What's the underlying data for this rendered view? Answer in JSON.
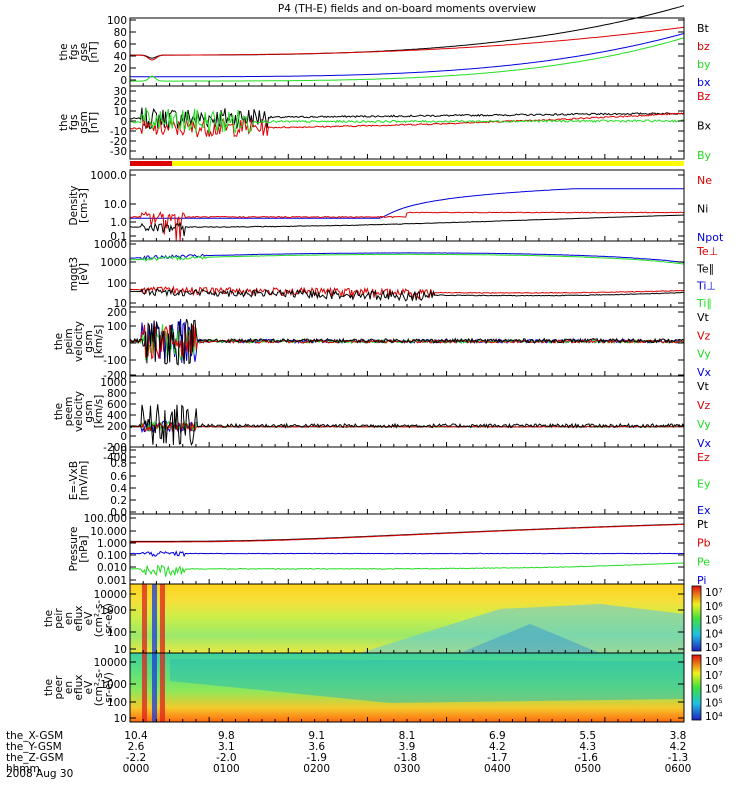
{
  "title": "P4 (TH-E) fields and on-board moments overview",
  "date_label": "2008 Aug 30",
  "colors": {
    "black": "#000000",
    "red": "#dd0000",
    "green": "#22dd22",
    "blue": "#0000dd",
    "yellow": "#ffff00"
  },
  "chart_data": [
    {
      "id": "fgs-gse",
      "type": "line",
      "ylabel": [
        "the",
        "fgs",
        "gse",
        "[nT]"
      ],
      "yticks": [
        "100",
        "80",
        "60",
        "40",
        "20",
        "0"
      ],
      "ylim": [
        -5,
        105
      ],
      "legend": [
        {
          "name": "Bt",
          "color": "#000000"
        },
        {
          "name": "bz",
          "color": "#dd0000"
        },
        {
          "name": "by",
          "color": "#22dd22"
        },
        {
          "name": "bx",
          "color": "#0000dd"
        }
      ]
    },
    {
      "id": "fgs-gsm",
      "type": "line",
      "ylabel": [
        "the",
        "fgs",
        "gsm",
        "[nT]"
      ],
      "yticks": [
        "30",
        "20",
        "10",
        "0",
        "-10",
        "-20",
        "-30"
      ],
      "ylim": [
        -35,
        32
      ],
      "legend": [
        {
          "name": "Bz",
          "color": "#dd0000"
        },
        {
          "name": "Bx",
          "color": "#000000"
        },
        {
          "name": "By",
          "color": "#22dd22"
        }
      ]
    },
    {
      "id": "density",
      "type": "line",
      "ylabel": [
        "Density",
        "[cm-3]"
      ],
      "yticks": [
        "1000.0",
        "10.0",
        "1.0",
        "0.1"
      ],
      "log": true,
      "ylim": [
        0.05,
        2000
      ],
      "legend": [
        {
          "name": "Ne",
          "color": "#dd0000"
        },
        {
          "name": "Ni",
          "color": "#000000"
        },
        {
          "name": "Npot",
          "color": "#0000dd"
        }
      ]
    },
    {
      "id": "temperature",
      "type": "line",
      "ylabel": [
        "mgqt3",
        "[eV]"
      ],
      "yticks": [
        "10000",
        "1000",
        "100",
        "10"
      ],
      "log": true,
      "ylim": [
        8,
        12000
      ],
      "legend": [
        {
          "name": "Te⊥",
          "color": "#dd0000"
        },
        {
          "name": "Te∥",
          "color": "#000000"
        },
        {
          "name": "Ti⊥",
          "color": "#0000dd"
        },
        {
          "name": "Ti∥",
          "color": "#22dd22"
        }
      ]
    },
    {
      "id": "peim-velocity",
      "type": "line",
      "ylabel": [
        "the",
        "peim",
        "velocity",
        "gsm",
        "[km/s]"
      ],
      "yticks": [
        "200",
        "100",
        "0",
        "-100",
        "-200"
      ],
      "ylim": [
        -200,
        200
      ],
      "legend": [
        {
          "name": "Vt",
          "color": "#000000"
        },
        {
          "name": "Vz",
          "color": "#dd0000"
        },
        {
          "name": "Vy",
          "color": "#22dd22"
        },
        {
          "name": "Vx",
          "color": "#0000dd"
        }
      ]
    },
    {
      "id": "peem-velocity",
      "type": "line",
      "ylabel": [
        "the",
        "peem",
        "velocity",
        "gsm",
        "[km/s]"
      ],
      "yticks": [
        "1000",
        "800",
        "600",
        "400",
        "200",
        "0",
        "-200",
        "-400"
      ],
      "ylim": [
        -400,
        1000
      ],
      "legend": [
        {
          "name": "Vt",
          "color": "#000000"
        },
        {
          "name": "Vz",
          "color": "#dd0000"
        },
        {
          "name": "Vy",
          "color": "#22dd22"
        },
        {
          "name": "Vx",
          "color": "#0000dd"
        }
      ]
    },
    {
      "id": "efield",
      "type": "line",
      "ylabel": [
        "E=-VxB",
        "[mV/m]"
      ],
      "yticks": [
        "1.0",
        "0.8",
        "0.6",
        "0.4",
        "0.2",
        "0.0"
      ],
      "ylim": [
        0,
        1
      ],
      "legend": [
        {
          "name": "Ez",
          "color": "#dd0000"
        },
        {
          "name": "Ey",
          "color": "#22dd22"
        },
        {
          "name": "Ex",
          "color": "#0000dd"
        }
      ]
    },
    {
      "id": "pressure",
      "type": "line",
      "ylabel": [
        "Pressure",
        "[nPa]"
      ],
      "yticks": [
        "100.000",
        "10.000",
        "1.000",
        "0.100",
        "0.010",
        "0.001"
      ],
      "log": true,
      "ylim": [
        0.001,
        100
      ],
      "legend": [
        {
          "name": "Pt",
          "color": "#000000"
        },
        {
          "name": "Pb",
          "color": "#dd0000"
        },
        {
          "name": "Pe",
          "color": "#22dd22"
        },
        {
          "name": "Pi",
          "color": "#0000dd"
        }
      ]
    },
    {
      "id": "peir-spectrogram",
      "type": "heatmap",
      "ylabel": [
        "the",
        "peir",
        "en",
        "eflux",
        "eV",
        "(cm^2-s-",
        "sr-eV)"
      ],
      "yticks": [
        "10000",
        "1000",
        "100",
        "10"
      ],
      "log": true,
      "colorbar": [
        "10^7",
        "10^6",
        "10^5",
        "10^4",
        "10^3"
      ]
    },
    {
      "id": "peer-spectrogram",
      "type": "heatmap",
      "ylabel": [
        "the",
        "peer",
        "en",
        "eflux",
        "eV",
        "(cm^2-s-",
        "sr-eV)"
      ],
      "yticks": [
        "10000",
        "1000",
        "100",
        "10"
      ],
      "log": true,
      "colorbar": [
        "10^8",
        "10^7",
        "10^6",
        "10^5",
        "10^4"
      ]
    }
  ],
  "x_axis": {
    "row_labels": [
      "the_X-GSM",
      "the_Y-GSM",
      "the_Z-GSM",
      "hhmm"
    ],
    "columns": [
      {
        "x": "10.4",
        "y": "2.6",
        "z": "-2.2",
        "t": "0000"
      },
      {
        "x": "9.8",
        "y": "3.1",
        "z": "-2.0",
        "t": "0100"
      },
      {
        "x": "9.1",
        "y": "3.6",
        "z": "-1.9",
        "t": "0200"
      },
      {
        "x": "8.1",
        "y": "3.9",
        "z": "-1.8",
        "t": "0300"
      },
      {
        "x": "6.9",
        "y": "4.2",
        "z": "-1.7",
        "t": "0400"
      },
      {
        "x": "5.5",
        "y": "4.3",
        "z": "-1.6",
        "t": "0500"
      },
      {
        "x": "3.8",
        "y": "4.2",
        "z": "-1.3",
        "t": "0600"
      }
    ]
  }
}
